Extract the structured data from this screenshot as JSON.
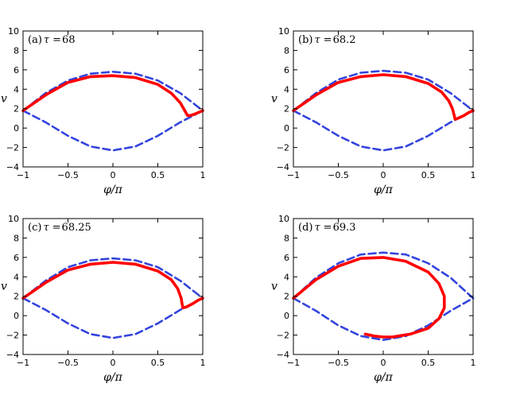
{
  "figure": {
    "colors": {
      "solid": "#ff0000",
      "dashed": "#3344dd",
      "axis": "#000000"
    }
  },
  "chart_data": [
    {
      "type": "line",
      "panel_label": "(a)",
      "param_symbol": "τ",
      "param_equals": "=",
      "param_value": "68",
      "xlabel": "φ/π",
      "ylabel": "v",
      "xlim": [
        -1,
        1
      ],
      "ylim": [
        -4,
        10
      ],
      "xticks": [
        "−1",
        "−0.5",
        "0",
        "0.5",
        "1"
      ],
      "yticks": [
        "−4",
        "−2",
        "0",
        "2",
        "4",
        "6",
        "8",
        "10"
      ],
      "series": [
        {
          "style": "dashed",
          "x": [
            -1,
            -0.75,
            -0.5,
            -0.25,
            0,
            0.25,
            0.5,
            0.75,
            1
          ],
          "y": [
            1.8,
            3.6,
            4.9,
            5.6,
            5.8,
            5.6,
            4.9,
            3.6,
            1.8
          ]
        },
        {
          "style": "dashed",
          "x": [
            -1,
            -0.75,
            -0.5,
            -0.25,
            0,
            0.25,
            0.5,
            0.75,
            1
          ],
          "y": [
            1.8,
            0.6,
            -0.8,
            -1.9,
            -2.3,
            -1.9,
            -0.8,
            0.6,
            1.8
          ]
        },
        {
          "style": "solid",
          "x": [
            -1,
            -0.75,
            -0.5,
            -0.25,
            0,
            0.25,
            0.5,
            0.65,
            0.75,
            0.8,
            0.83,
            0.86,
            0.9,
            0.95,
            1
          ],
          "y": [
            1.8,
            3.4,
            4.7,
            5.3,
            5.4,
            5.2,
            4.5,
            3.6,
            2.6,
            1.8,
            1.3,
            1.3,
            1.4,
            1.6,
            1.8
          ]
        }
      ]
    },
    {
      "type": "line",
      "panel_label": "(b)",
      "param_symbol": "τ",
      "param_equals": "=",
      "param_value": "68.2",
      "xlabel": "φ/π",
      "ylabel": "v",
      "xlim": [
        -1,
        1
      ],
      "ylim": [
        -4,
        10
      ],
      "xticks": [
        "−1",
        "−0.5",
        "0",
        "0.5",
        "1"
      ],
      "yticks": [
        "−4",
        "−2",
        "0",
        "2",
        "4",
        "6",
        "8",
        "10"
      ],
      "series": [
        {
          "style": "dashed",
          "x": [
            -1,
            -0.75,
            -0.5,
            -0.25,
            0,
            0.25,
            0.5,
            0.75,
            1
          ],
          "y": [
            1.8,
            3.6,
            5.0,
            5.7,
            5.9,
            5.7,
            5.0,
            3.6,
            1.8
          ]
        },
        {
          "style": "dashed",
          "x": [
            -1,
            -0.75,
            -0.5,
            -0.25,
            0,
            0.25,
            0.5,
            0.75,
            1
          ],
          "y": [
            1.8,
            0.6,
            -0.8,
            -1.9,
            -2.3,
            -1.9,
            -0.8,
            0.6,
            1.8
          ]
        },
        {
          "style": "solid",
          "x": [
            -1,
            -0.75,
            -0.5,
            -0.25,
            0,
            0.25,
            0.5,
            0.65,
            0.73,
            0.77,
            0.79,
            0.8,
            0.83,
            0.9,
            0.95,
            1
          ],
          "y": [
            1.8,
            3.4,
            4.7,
            5.3,
            5.5,
            5.3,
            4.6,
            3.7,
            2.8,
            2.0,
            1.3,
            0.9,
            1.0,
            1.3,
            1.6,
            1.8
          ]
        }
      ]
    },
    {
      "type": "line",
      "panel_label": "(c)",
      "param_symbol": "τ",
      "param_equals": "=",
      "param_value": "68.25",
      "xlabel": "φ/π",
      "ylabel": "v",
      "xlim": [
        -1,
        1
      ],
      "ylim": [
        -4,
        10
      ],
      "xticks": [
        "−1",
        "−0.5",
        "0",
        "0.5",
        "1"
      ],
      "yticks": [
        "−4",
        "−2",
        "0",
        "2",
        "4",
        "6",
        "8",
        "10"
      ],
      "series": [
        {
          "style": "dashed",
          "x": [
            -1,
            -0.75,
            -0.5,
            -0.25,
            0,
            0.25,
            0.5,
            0.75,
            1
          ],
          "y": [
            1.8,
            3.6,
            5.0,
            5.7,
            5.9,
            5.7,
            5.0,
            3.6,
            1.8
          ]
        },
        {
          "style": "dashed",
          "x": [
            -1,
            -0.75,
            -0.5,
            -0.25,
            0,
            0.25,
            0.5,
            0.75,
            1
          ],
          "y": [
            1.8,
            0.6,
            -0.8,
            -1.9,
            -2.3,
            -1.9,
            -0.8,
            0.6,
            1.8
          ]
        },
        {
          "style": "solid",
          "x": [
            -1,
            -0.75,
            -0.5,
            -0.25,
            0,
            0.25,
            0.5,
            0.65,
            0.72,
            0.76,
            0.77,
            0.78,
            0.82,
            0.9,
            0.95,
            1
          ],
          "y": [
            1.8,
            3.4,
            4.7,
            5.3,
            5.5,
            5.3,
            4.6,
            3.7,
            2.8,
            1.8,
            1.2,
            0.8,
            0.9,
            1.3,
            1.6,
            1.8
          ]
        }
      ]
    },
    {
      "type": "line",
      "panel_label": "(d)",
      "param_symbol": "τ",
      "param_equals": "=",
      "param_value": "69.3",
      "xlabel": "φ/π",
      "ylabel": "v",
      "xlim": [
        -1,
        1
      ],
      "ylim": [
        -4,
        10
      ],
      "xticks": [
        "−1",
        "−0.5",
        "0",
        "0.5",
        "1"
      ],
      "yticks": [
        "−4",
        "−2",
        "0",
        "2",
        "4",
        "6",
        "8",
        "10"
      ],
      "series": [
        {
          "style": "dashed",
          "x": [
            -1,
            -0.75,
            -0.5,
            -0.25,
            0,
            0.25,
            0.5,
            0.75,
            1
          ],
          "y": [
            1.8,
            3.9,
            5.4,
            6.3,
            6.5,
            6.3,
            5.4,
            3.9,
            1.8
          ]
        },
        {
          "style": "dashed",
          "x": [
            -1,
            -0.75,
            -0.5,
            -0.25,
            0,
            0.25,
            0.5,
            0.75,
            1
          ],
          "y": [
            1.8,
            0.5,
            -1.0,
            -2.1,
            -2.5,
            -2.1,
            -1.0,
            0.5,
            1.8
          ]
        },
        {
          "style": "solid",
          "x": [
            -1,
            -0.75,
            -0.5,
            -0.25,
            0,
            0.25,
            0.5,
            0.62,
            0.68,
            0.68,
            0.62,
            0.5,
            0.3,
            0.1,
            0.0,
            -0.1,
            -0.2
          ],
          "y": [
            1.8,
            3.7,
            5.1,
            5.9,
            6.0,
            5.6,
            4.5,
            3.3,
            2.0,
            0.8,
            -0.3,
            -1.3,
            -1.9,
            -2.2,
            -2.2,
            -2.1,
            -1.9
          ]
        }
      ]
    }
  ]
}
